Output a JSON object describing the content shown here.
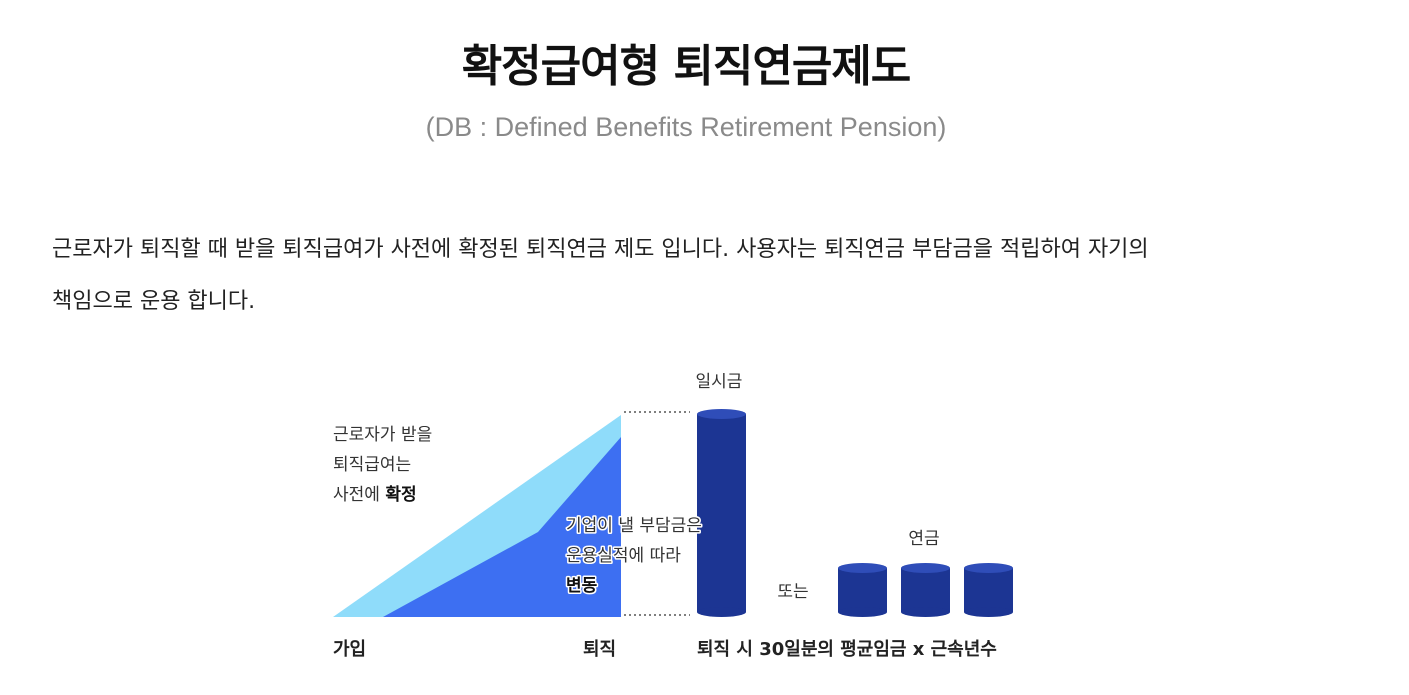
{
  "title": "확정급여형 퇴직연금제도",
  "subtitle": "(DB : Defined Benefits Retirement Pension)",
  "description_line1": "근로자가 퇴직할 때 받을 퇴직급여가 사전에 확정된 퇴직연금 제도 입니다. 사용자는 퇴직연금 부담금을 적립하여 자기의",
  "description_line2": "책임으로 운용 합니다.",
  "diagram": {
    "label_left_line1": "근로자가 받을",
    "label_left_line2": "퇴직급여는",
    "label_left_line3_prefix": "사전에 ",
    "label_left_line3_bold": "확정",
    "label_mid_line1": "기업이 낼 부담금은",
    "label_mid_line2": "운용실적에 따라",
    "label_mid_line3": "변동",
    "label_lump_sum": "일시금",
    "label_or": "또는",
    "label_annuity": "연금",
    "axis_join": "가입",
    "axis_retire": "퇴직",
    "axis_formula": "퇴직 시 30일분의 평균임금 x 근속년수",
    "colors": {
      "light_area": "#8fdcfa",
      "dark_area": "#3d6ff2",
      "cylinder": "#1c3593",
      "cylinder_top": "#2f4db8"
    }
  }
}
